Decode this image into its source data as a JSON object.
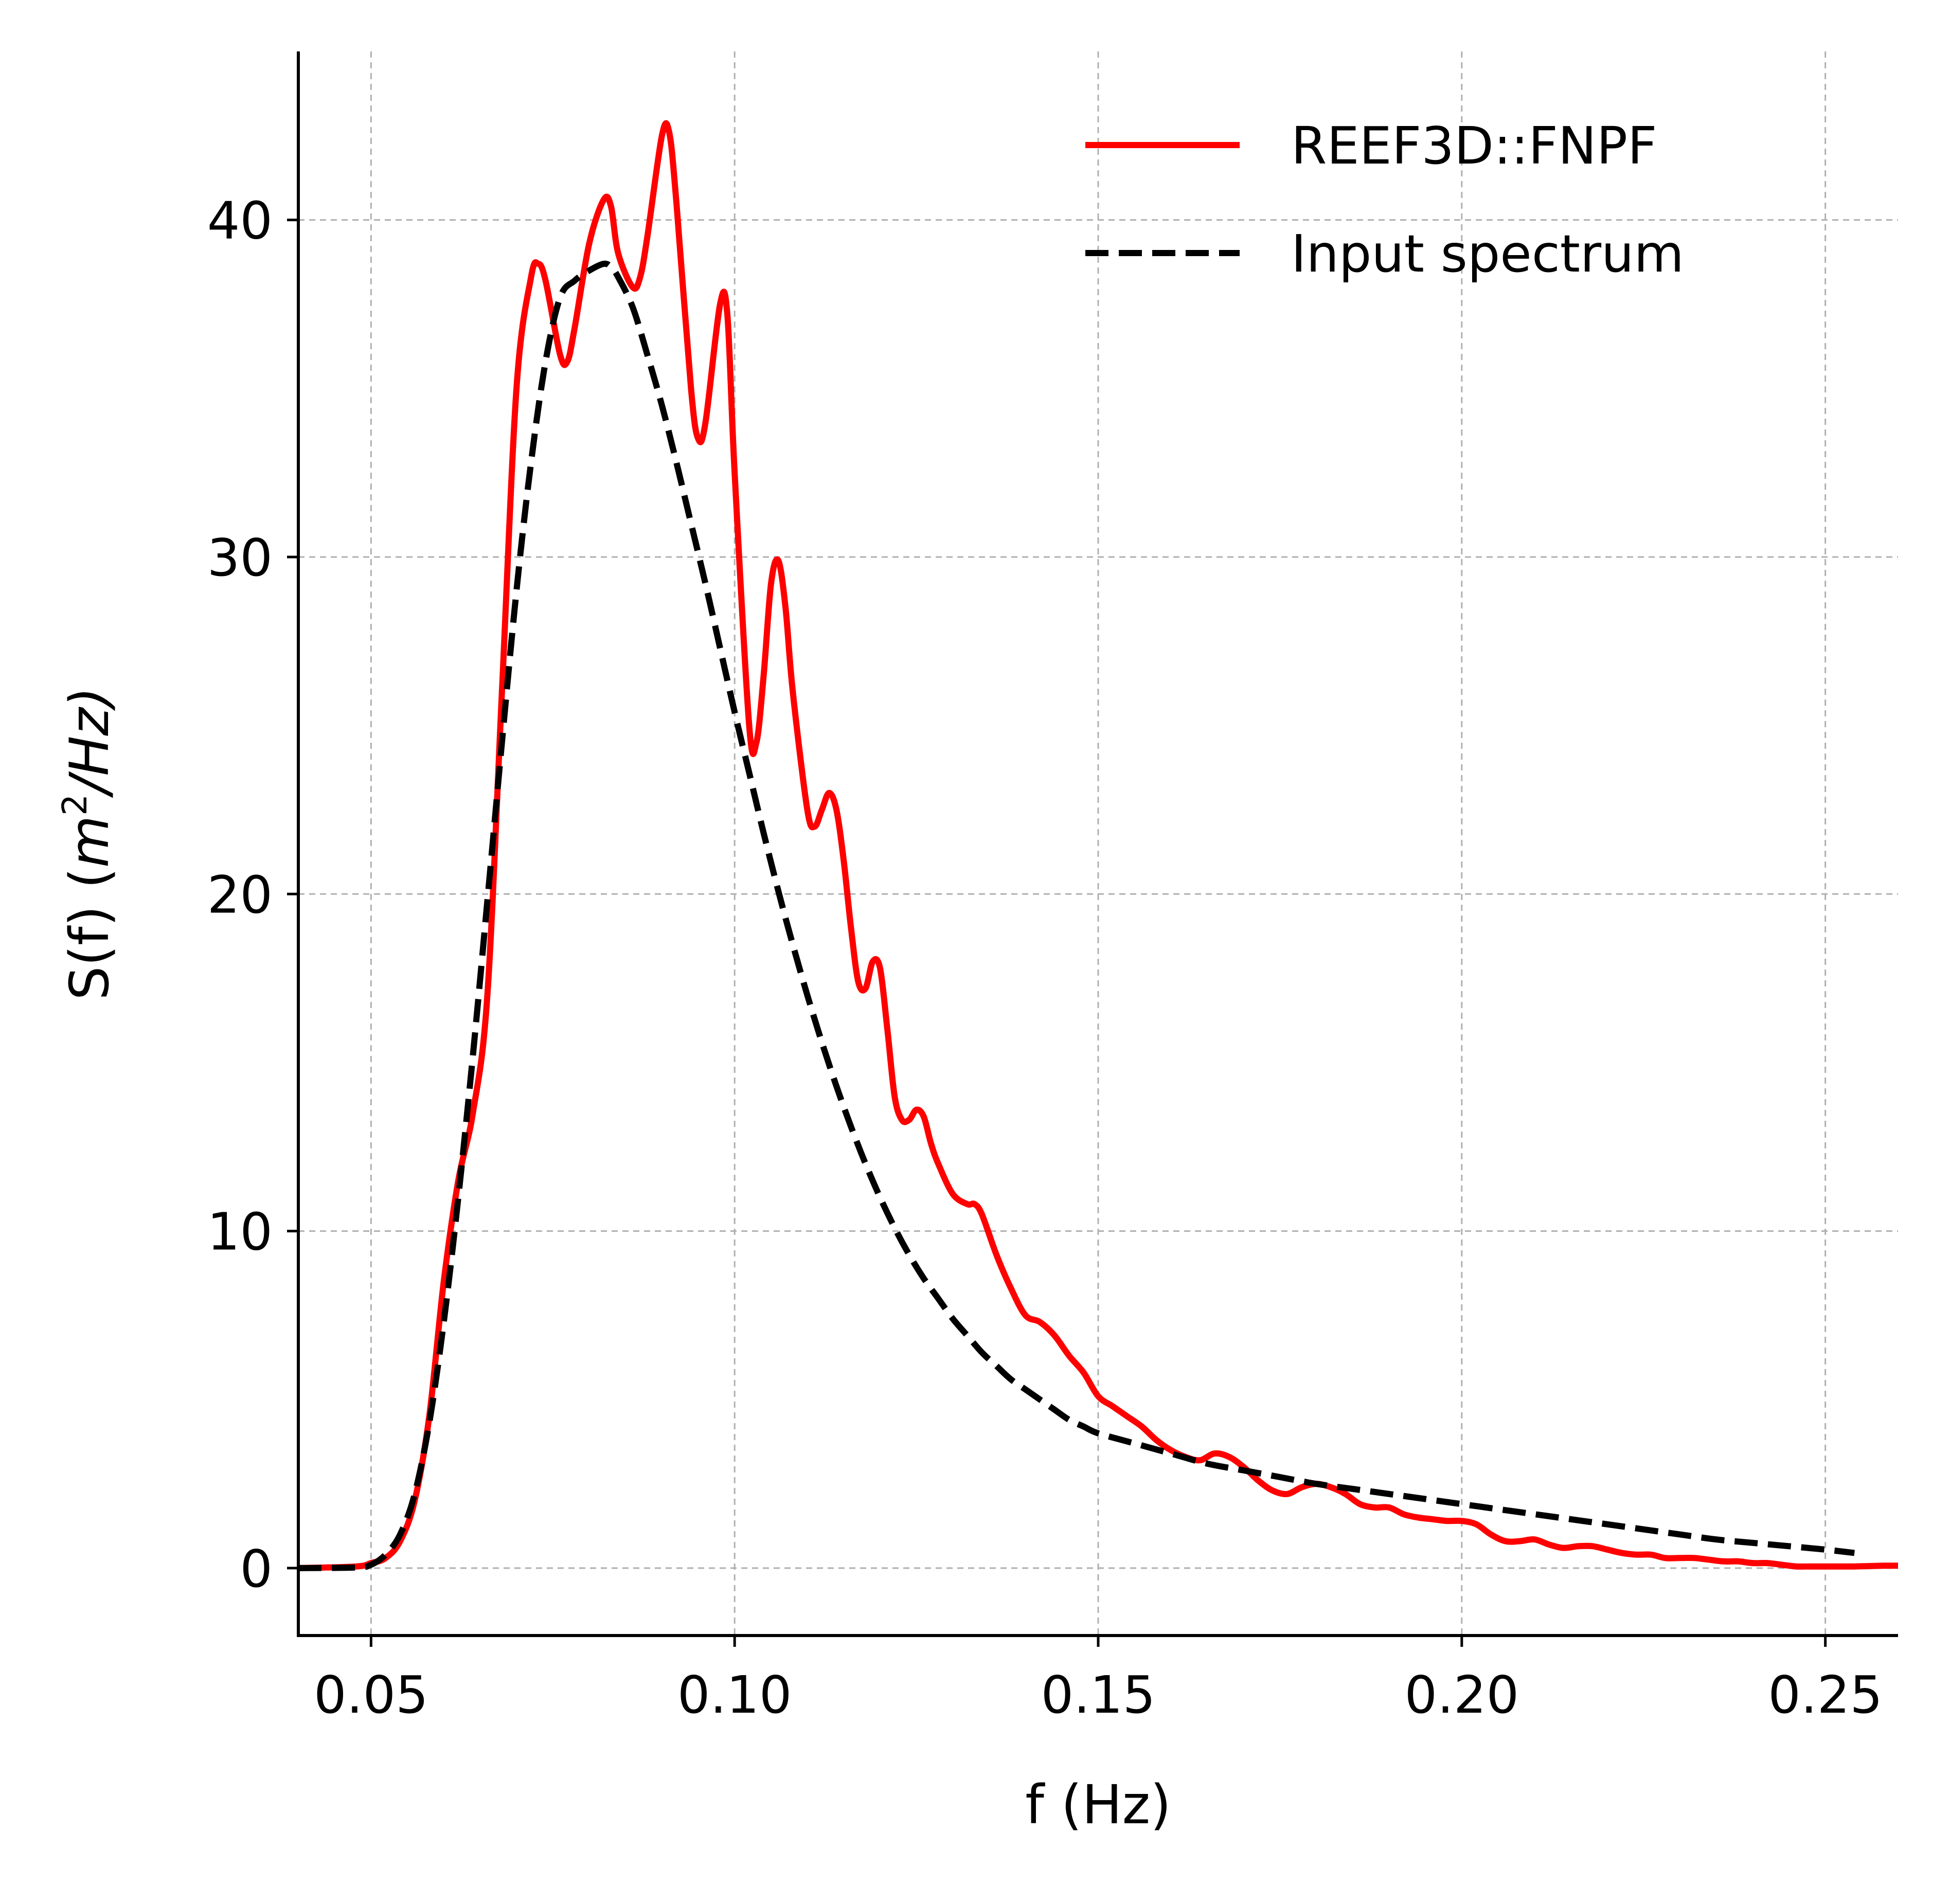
{
  "chart_data": {
    "type": "line",
    "title": "",
    "xlabel": "f (Hz)",
    "ylabel": "S(f) (m²/Hz)",
    "ylabel_parts": {
      "prefix": "S(f) (",
      "var": "m",
      "exp": "2",
      "suffix": "/Hz)"
    },
    "xlim": [
      0.04,
      0.26
    ],
    "ylim": [
      -2,
      45
    ],
    "xticks": [
      0.05,
      0.1,
      0.15,
      0.2,
      0.25
    ],
    "xtick_labels": [
      "0.05",
      "0.10",
      "0.15",
      "0.20",
      "0.25"
    ],
    "yticks": [
      0,
      10,
      20,
      30,
      40
    ],
    "ytick_labels": [
      "0",
      "10",
      "20",
      "30",
      "40"
    ],
    "grid": true,
    "legend_position": "top-right",
    "colors": {
      "reef3d": "#ff0000",
      "input": "#000000",
      "grid": "#b0b0b0"
    },
    "series": [
      {
        "name": "REEF3D::FNPF",
        "style": "solid",
        "color": "#ff0000",
        "x": [
          0.04,
          0.048,
          0.05,
          0.052,
          0.054,
          0.056,
          0.058,
          0.06,
          0.062,
          0.064,
          0.066,
          0.068,
          0.07,
          0.072,
          0.073,
          0.074,
          0.076,
          0.077,
          0.078,
          0.08,
          0.082,
          0.083,
          0.084,
          0.086,
          0.087,
          0.088,
          0.09,
          0.091,
          0.092,
          0.094,
          0.095,
          0.096,
          0.098,
          0.099,
          0.1,
          0.102,
          0.103,
          0.104,
          0.105,
          0.106,
          0.107,
          0.108,
          0.11,
          0.111,
          0.112,
          0.113,
          0.114,
          0.115,
          0.116,
          0.117,
          0.118,
          0.119,
          0.12,
          0.121,
          0.122,
          0.123,
          0.124,
          0.125,
          0.126,
          0.127,
          0.128,
          0.13,
          0.132,
          0.133,
          0.134,
          0.136,
          0.138,
          0.14,
          0.142,
          0.144,
          0.146,
          0.148,
          0.15,
          0.152,
          0.154,
          0.156,
          0.158,
          0.16,
          0.162,
          0.164,
          0.166,
          0.168,
          0.17,
          0.172,
          0.174,
          0.176,
          0.178,
          0.18,
          0.182,
          0.184,
          0.186,
          0.188,
          0.19,
          0.192,
          0.194,
          0.196,
          0.198,
          0.2,
          0.202,
          0.204,
          0.206,
          0.208,
          0.21,
          0.212,
          0.214,
          0.216,
          0.218,
          0.22,
          0.222,
          0.224,
          0.226,
          0.228,
          0.23,
          0.232,
          0.234,
          0.236,
          0.238,
          0.24,
          0.242,
          0.244,
          0.246,
          0.248,
          0.25,
          0.252,
          0.254,
          0.256,
          0.258,
          0.26
        ],
        "y": [
          0.0,
          0.05,
          0.15,
          0.3,
          0.8,
          2.0,
          4.5,
          8.5,
          11.5,
          13.5,
          17.0,
          26.0,
          35.0,
          38.3,
          38.7,
          38.2,
          36.0,
          35.8,
          36.8,
          39.3,
          40.6,
          40.4,
          39.0,
          38.0,
          38.3,
          39.5,
          42.5,
          42.6,
          40.5,
          35.0,
          33.5,
          34.0,
          37.5,
          37.2,
          32.5,
          25.0,
          24.5,
          26.5,
          29.2,
          29.9,
          28.5,
          26.0,
          22.5,
          22.0,
          22.5,
          23.0,
          22.5,
          21.0,
          19.0,
          17.4,
          17.2,
          18.0,
          17.8,
          16.0,
          14.0,
          13.3,
          13.3,
          13.6,
          13.4,
          12.6,
          12.0,
          11.1,
          10.8,
          10.8,
          10.5,
          9.3,
          8.3,
          7.5,
          7.3,
          6.9,
          6.3,
          5.8,
          5.1,
          4.8,
          4.5,
          4.2,
          3.8,
          3.5,
          3.3,
          3.2,
          3.4,
          3.3,
          3.0,
          2.6,
          2.3,
          2.2,
          2.4,
          2.5,
          2.4,
          2.2,
          1.9,
          1.8,
          1.8,
          1.6,
          1.5,
          1.45,
          1.4,
          1.4,
          1.3,
          1.0,
          0.8,
          0.8,
          0.85,
          0.7,
          0.6,
          0.65,
          0.65,
          0.55,
          0.45,
          0.4,
          0.4,
          0.3,
          0.3,
          0.3,
          0.25,
          0.2,
          0.2,
          0.15,
          0.15,
          0.1,
          0.05,
          0.05,
          0.05,
          0.05,
          0.05,
          0.06,
          0.07,
          0.07
        ]
      },
      {
        "name": "Input spectrum",
        "style": "dashed",
        "color": "#000000",
        "x": [
          0.04,
          0.048,
          0.05,
          0.052,
          0.054,
          0.056,
          0.058,
          0.06,
          0.062,
          0.064,
          0.066,
          0.068,
          0.07,
          0.072,
          0.074,
          0.076,
          0.078,
          0.08,
          0.082,
          0.083,
          0.084,
          0.086,
          0.088,
          0.09,
          0.092,
          0.094,
          0.096,
          0.098,
          0.1,
          0.102,
          0.104,
          0.106,
          0.108,
          0.11,
          0.112,
          0.114,
          0.116,
          0.118,
          0.12,
          0.122,
          0.124,
          0.126,
          0.128,
          0.13,
          0.132,
          0.134,
          0.136,
          0.138,
          0.14,
          0.142,
          0.144,
          0.146,
          0.148,
          0.15,
          0.155,
          0.16,
          0.165,
          0.17,
          0.175,
          0.18,
          0.185,
          0.19,
          0.195,
          0.2,
          0.205,
          0.21,
          0.215,
          0.22,
          0.225,
          0.23,
          0.235,
          0.24,
          0.245,
          0.25,
          0.254
        ],
        "y": [
          0.0,
          0.02,
          0.1,
          0.4,
          1.0,
          2.2,
          4.3,
          7.3,
          11.0,
          15.2,
          19.8,
          24.5,
          29.0,
          32.8,
          35.8,
          37.7,
          38.2,
          38.5,
          38.7,
          38.6,
          38.3,
          37.4,
          36.0,
          34.5,
          32.8,
          31.0,
          29.2,
          27.3,
          25.4,
          23.6,
          21.8,
          20.1,
          18.5,
          17.0,
          15.6,
          14.3,
          13.1,
          12.0,
          11.0,
          10.1,
          9.3,
          8.6,
          8.0,
          7.4,
          6.9,
          6.4,
          6.0,
          5.6,
          5.3,
          5.0,
          4.7,
          4.4,
          4.2,
          4.0,
          3.7,
          3.4,
          3.1,
          2.9,
          2.7,
          2.5,
          2.35,
          2.2,
          2.05,
          1.9,
          1.75,
          1.6,
          1.45,
          1.3,
          1.15,
          1.0,
          0.85,
          0.75,
          0.65,
          0.55,
          0.45
        ]
      }
    ]
  }
}
